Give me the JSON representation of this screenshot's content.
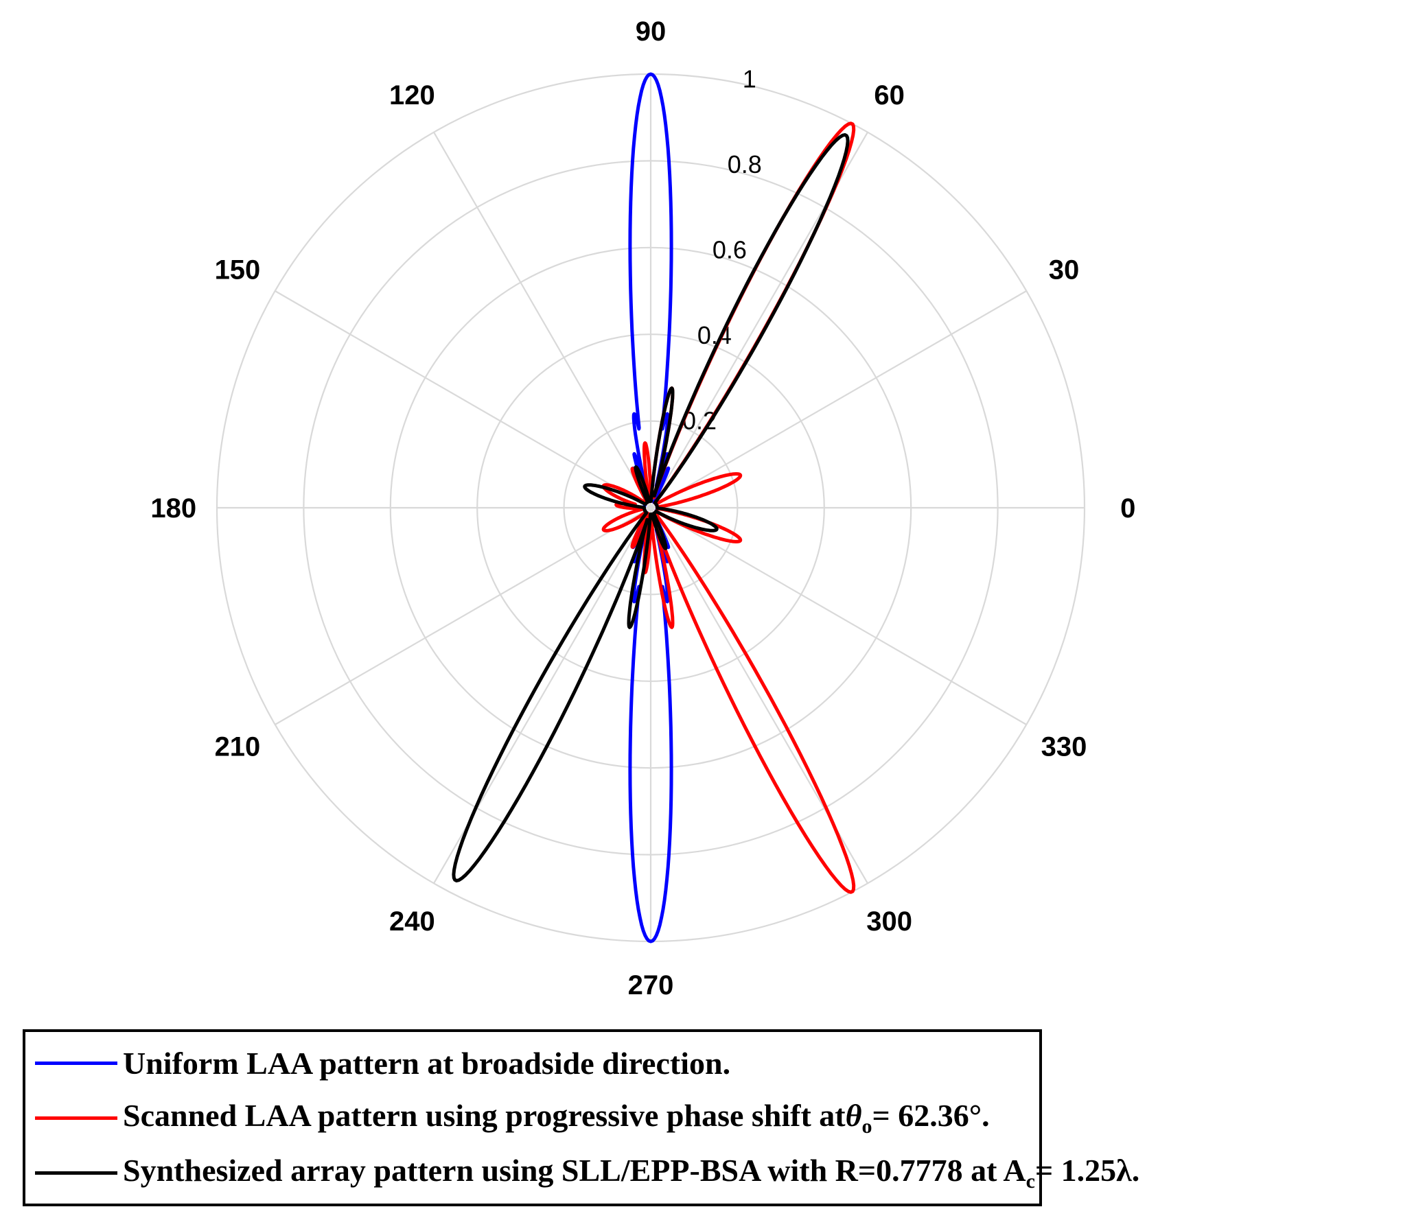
{
  "chart_data": {
    "type": "polar-line",
    "theta_unit": "degrees",
    "rlim": [
      0,
      1
    ],
    "r_ticks": [
      "0.2",
      "0.4",
      "0.6",
      "0.8",
      "1"
    ],
    "r_tick_values": [
      0.2,
      0.4,
      0.6,
      0.8,
      1.0
    ],
    "theta_ticks": [
      "0",
      "30",
      "60",
      "90",
      "120",
      "150",
      "180",
      "210",
      "240",
      "270",
      "300",
      "330"
    ],
    "theta_tick_values": [
      0,
      30,
      60,
      90,
      120,
      150,
      180,
      210,
      240,
      270,
      300,
      330
    ],
    "grid": true,
    "legend_position": "bottom",
    "series": [
      {
        "name": "Uniform LAA pattern at broadside direction.",
        "color": "#0000ff",
        "main_lobes": [
          {
            "theta": 90,
            "r": 1.0,
            "halfwidth": 4.5
          },
          {
            "theta": 270,
            "r": 1.0,
            "halfwidth": 4.5
          }
        ],
        "side_lobes": [
          {
            "theta": 80,
            "r": 0.22,
            "halfwidth": 2.5
          },
          {
            "theta": 100,
            "r": 0.22,
            "halfwidth": 2.5
          },
          {
            "theta": 73,
            "r": 0.13,
            "halfwidth": 2.0
          },
          {
            "theta": 107,
            "r": 0.13,
            "halfwidth": 2.0
          },
          {
            "theta": 66,
            "r": 0.1,
            "halfwidth": 2.0
          },
          {
            "theta": 114,
            "r": 0.1,
            "halfwidth": 2.0
          },
          {
            "theta": 260,
            "r": 0.22,
            "halfwidth": 2.5
          },
          {
            "theta": 280,
            "r": 0.22,
            "halfwidth": 2.5
          },
          {
            "theta": 253,
            "r": 0.13,
            "halfwidth": 2.0
          },
          {
            "theta": 287,
            "r": 0.13,
            "halfwidth": 2.0
          },
          {
            "theta": 246,
            "r": 0.1,
            "halfwidth": 2.0
          },
          {
            "theta": 294,
            "r": 0.1,
            "halfwidth": 2.0
          }
        ]
      },
      {
        "name": "Scanned LAA pattern using progressive phase shift at θo = 62.36°.",
        "color": "#ff0000",
        "main_lobes": [
          {
            "theta": 62.36,
            "r": 1.0,
            "halfwidth": 4.0
          },
          {
            "theta": 297.64,
            "r": 1.0,
            "halfwidth": 4.0
          }
        ],
        "side_lobes": [
          {
            "theta": 20,
            "r": 0.22,
            "halfwidth": 6.0
          },
          {
            "theta": 340,
            "r": 0.22,
            "halfwidth": 6.0
          },
          {
            "theta": 80,
            "r": 0.28,
            "halfwidth": 3.0
          },
          {
            "theta": 280,
            "r": 0.28,
            "halfwidth": 3.0
          },
          {
            "theta": 95,
            "r": 0.15,
            "halfwidth": 3.0
          },
          {
            "theta": 265,
            "r": 0.15,
            "halfwidth": 3.0
          },
          {
            "theta": 155,
            "r": 0.12,
            "halfwidth": 8.0
          },
          {
            "theta": 205,
            "r": 0.12,
            "halfwidth": 8.0
          },
          {
            "theta": 175,
            "r": 0.08,
            "halfwidth": 6.0
          },
          {
            "theta": 115,
            "r": 0.1,
            "halfwidth": 4.0
          },
          {
            "theta": 245,
            "r": 0.1,
            "halfwidth": 4.0
          }
        ]
      },
      {
        "name": "Synthesized array pattern using SLL/EPP-BSA with R=0.7778 at Ac = 1.25λ.",
        "color": "#000000",
        "main_lobes": [
          {
            "theta": 62.36,
            "r": 0.97,
            "halfwidth": 4.2
          },
          {
            "theta": 242.36,
            "r": 0.97,
            "halfwidth": 4.2
          }
        ],
        "side_lobes": [
          {
            "theta": 162,
            "r": 0.16,
            "halfwidth": 7.0
          },
          {
            "theta": 342,
            "r": 0.16,
            "halfwidth": 7.0
          },
          {
            "theta": 80,
            "r": 0.28,
            "halfwidth": 3.0
          },
          {
            "theta": 260,
            "r": 0.28,
            "halfwidth": 3.0
          },
          {
            "theta": 110,
            "r": 0.1,
            "halfwidth": 4.0
          },
          {
            "theta": 290,
            "r": 0.1,
            "halfwidth": 4.0
          }
        ]
      }
    ]
  },
  "legend": {
    "blue_text": "Uniform LAA pattern at broadside direction.",
    "red_text_main": "Scanned LAA pattern using progressive phase shift at",
    "red_theta": "θ",
    "red_sub": "o",
    "red_text_end": "= 62.36°.",
    "black_text_main": "Synthesized array pattern using SLL/EPP-BSA with R=0.7778 at A",
    "black_sub": "c",
    "black_text_end": "= 1.25λ."
  }
}
